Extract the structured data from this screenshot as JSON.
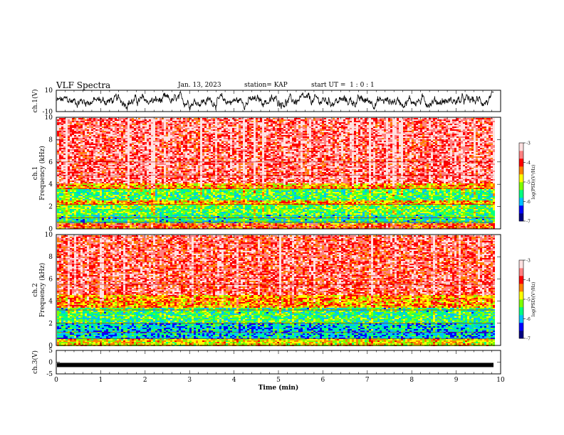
{
  "header": {
    "title": "VLF Spectra",
    "date": "Jan. 13, 2023",
    "station": "station= KAP",
    "start_ut": "start UT =  1 : 0 : 1"
  },
  "chart_data": [
    {
      "type": "line",
      "panel": "ch1-waveform",
      "ylabel": "ch.1(V)",
      "ylim": [
        -10,
        10
      ],
      "yticks": [
        "10",
        "-10"
      ],
      "xlim": [
        0,
        9.8
      ],
      "description_values": {
        "typical_level": 0,
        "amplitude": 6
      }
    },
    {
      "type": "heatmap",
      "panel": "ch1-spectrogram",
      "ylabel": "ch.1",
      "ylabel2": "Frequency (kHz)",
      "ylim": [
        0,
        10
      ],
      "yticks": [
        "0",
        "2",
        "4",
        "6",
        "8",
        "10"
      ],
      "xlim": [
        0,
        9.8
      ],
      "colorbar": {
        "label": "log(PSD)(V²/Hz)",
        "range": [
          -7,
          -3
        ],
        "ticks": [
          "-3",
          "-4",
          "-5",
          "-6",
          "-7"
        ]
      },
      "bands": [
        {
          "from": 0,
          "to": 0.6,
          "level": -4.2
        },
        {
          "from": 0.6,
          "to": 1.4,
          "level": -5.6
        },
        {
          "from": 1.4,
          "to": 2.2,
          "level": -5.3
        },
        {
          "from": 2.2,
          "to": 2.6,
          "level": -4.6
        },
        {
          "from": 2.6,
          "to": 3.6,
          "level": -5.4
        },
        {
          "from": 3.6,
          "to": 4.2,
          "level": -4.6
        },
        {
          "from": 4.2,
          "to": 10,
          "level": -3.7
        }
      ],
      "lines_khz": [
        0.6,
        1.0,
        2.2,
        3.6,
        4.8,
        6.0
      ]
    },
    {
      "type": "heatmap",
      "panel": "ch2-spectrogram",
      "ylabel": "ch.2",
      "ylabel2": "Frequency (kHz)",
      "ylim": [
        0,
        10
      ],
      "yticks": [
        "0",
        "2",
        "4",
        "6",
        "8",
        "10"
      ],
      "xlim": [
        0,
        9.8
      ],
      "colorbar": {
        "label": "log(PSD)(V²/Hz)",
        "range": [
          -7,
          -3
        ],
        "ticks": [
          "-3",
          "-4",
          "-5",
          "-6",
          "-7"
        ]
      },
      "bands": [
        {
          "from": 0,
          "to": 0.6,
          "level": -4.8
        },
        {
          "from": 0.6,
          "to": 2.0,
          "level": -5.9
        },
        {
          "from": 2.0,
          "to": 3.4,
          "level": -5.5
        },
        {
          "from": 3.4,
          "to": 4.6,
          "level": -4.5
        },
        {
          "from": 4.6,
          "to": 10,
          "level": -3.8
        }
      ],
      "lines_khz": [
        0.6,
        1.2,
        2.0,
        3.2,
        5.5
      ]
    },
    {
      "type": "line",
      "panel": "ch3-waveform",
      "ylabel": "ch.3(V)",
      "ylim": [
        -5,
        5
      ],
      "yticks": [
        "5",
        "0",
        "-5"
      ],
      "xlim": [
        0,
        9.8
      ],
      "description_values": {
        "constant_level": -1.2
      }
    }
  ],
  "x_axis": {
    "label": "Time (min)",
    "range": [
      0,
      10
    ],
    "ticks": [
      "0",
      "1",
      "2",
      "3",
      "4",
      "5",
      "6",
      "7",
      "8",
      "9",
      "10"
    ]
  },
  "colors": {
    "cmap": [
      "#000080",
      "#0000ff",
      "#00c0ff",
      "#00ff80",
      "#7fff00",
      "#ffff00",
      "#ff8000",
      "#ff0000",
      "#ff8080",
      "#ffe0e0"
    ]
  }
}
